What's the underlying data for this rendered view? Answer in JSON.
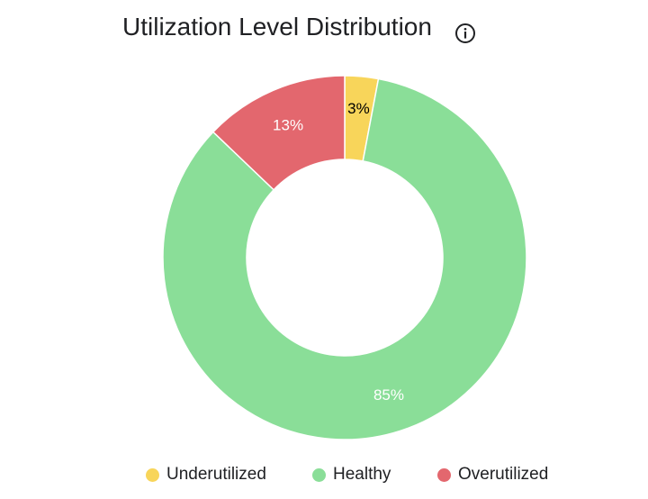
{
  "chart_data": {
    "type": "pie",
    "variant": "donut",
    "title": "Utilization Level Distribution",
    "title_icon": "info-icon",
    "slices": [
      {
        "name": "Underutilized",
        "value": 3,
        "label": "3%",
        "color": "#f8d55a",
        "label_color": "#000000"
      },
      {
        "name": "Healthy",
        "value": 85,
        "label": "85%",
        "color": "#8ade98",
        "label_color": "#ffffff"
      },
      {
        "name": "Overutilized",
        "value": 13,
        "label": "13%",
        "color": "#e3676e",
        "label_color": "#ffffff"
      }
    ],
    "start_angle_deg": 0,
    "direction": "clockwise",
    "legend": {
      "position": "bottom"
    }
  }
}
